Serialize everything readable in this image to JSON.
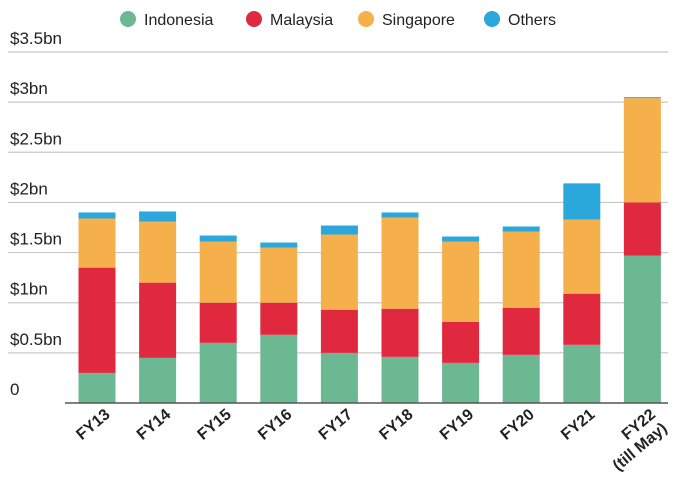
{
  "chart_data": {
    "type": "bar",
    "stacked": true,
    "categories": [
      "FY13",
      "FY14",
      "FY15",
      "FY16",
      "FY17",
      "FY18",
      "FY19",
      "FY20",
      "FY21",
      "FY22\n(till May)"
    ],
    "series": [
      {
        "name": "Indonesia",
        "color": "#6cb893",
        "values": [
          0.3,
          0.45,
          0.6,
          0.68,
          0.5,
          0.46,
          0.4,
          0.48,
          0.58,
          1.47
        ]
      },
      {
        "name": "Malaysia",
        "color": "#e0283e",
        "values": [
          1.05,
          0.75,
          0.4,
          0.32,
          0.43,
          0.48,
          0.41,
          0.47,
          0.51,
          0.53
        ]
      },
      {
        "name": "Singapore",
        "color": "#f5b04c",
        "values": [
          0.49,
          0.61,
          0.61,
          0.55,
          0.75,
          0.91,
          0.8,
          0.76,
          0.74,
          1.04
        ]
      },
      {
        "name": "Others",
        "color": "#2aa8dc",
        "values": [
          0.06,
          0.1,
          0.06,
          0.05,
          0.09,
          0.05,
          0.05,
          0.05,
          0.36,
          0.01
        ]
      }
    ],
    "yticks": [
      "0",
      "$0.5bn",
      "$1bn",
      "$1.5bn",
      "$2bn",
      "$2.5bn",
      "$3bn",
      "$3.5bn"
    ],
    "ylim": [
      0,
      3.5
    ],
    "grid": true,
    "legend": "top"
  }
}
